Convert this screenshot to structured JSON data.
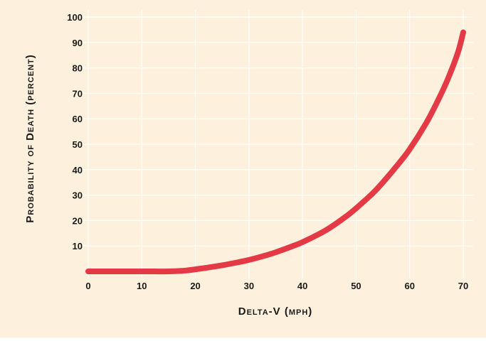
{
  "chart_data": {
    "type": "line",
    "title": "",
    "xlabel": "Delta-V (mph)",
    "ylabel": "Probability of Death (percent)",
    "xlim": [
      0,
      70
    ],
    "ylim": [
      0,
      100
    ],
    "x_ticks": [
      0,
      10,
      20,
      30,
      40,
      50,
      60,
      70
    ],
    "y_ticks": [
      10,
      20,
      30,
      40,
      50,
      60,
      70,
      80,
      90,
      100
    ],
    "grid": true,
    "legend": "none",
    "series": [
      {
        "x": [
          0,
          10,
          15,
          18,
          20,
          22,
          25,
          28,
          30,
          33,
          35,
          38,
          40,
          43,
          45,
          48,
          50,
          53,
          55,
          58,
          60,
          63,
          65,
          67,
          69,
          70
        ],
        "y": [
          0,
          0,
          0,
          0.3,
          0.8,
          1.4,
          2.4,
          3.6,
          4.5,
          6.2,
          7.5,
          9.8,
          11.5,
          14.6,
          17.0,
          21.4,
          24.8,
          30.5,
          35.0,
          42.5,
          48.0,
          58.0,
          66.0,
          75.0,
          86.0,
          94.0
        ]
      }
    ],
    "colors": {
      "background": "#fdf0dc",
      "grid": "#ffffff",
      "line": "#e33a45",
      "text": "#1a1a1a"
    }
  }
}
